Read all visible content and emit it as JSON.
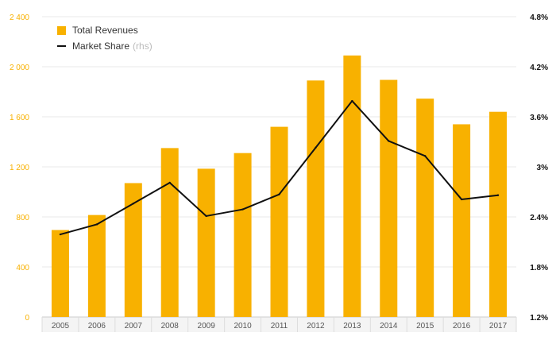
{
  "colors": {
    "bar": "#F8B100",
    "line": "#111111",
    "left_axis_text": "#F8B100",
    "grid": "#e9e9e9"
  },
  "legend": {
    "bar_label": "Total Revenues",
    "line_label": "Market Share",
    "line_note": "(rhs)"
  },
  "chart_data": {
    "type": "bar",
    "categories": [
      "2005",
      "2006",
      "2007",
      "2008",
      "2009",
      "2010",
      "2011",
      "2012",
      "2013",
      "2014",
      "2015",
      "2016",
      "2017"
    ],
    "series": [
      {
        "name": "Total Revenues",
        "type": "bar",
        "axis": "left",
        "values": [
          695,
          815,
          1070,
          1350,
          1185,
          1310,
          1520,
          1890,
          2090,
          1895,
          1745,
          1540,
          1640
        ]
      },
      {
        "name": "Market Share (rhs)",
        "type": "line",
        "axis": "right",
        "values": [
          2.19,
          2.31,
          2.56,
          2.81,
          2.41,
          2.49,
          2.67,
          3.23,
          3.79,
          3.31,
          3.13,
          2.61,
          2.66
        ]
      }
    ],
    "left_axis": {
      "ylim": [
        0,
        2400
      ],
      "ticks": [
        0,
        400,
        800,
        1200,
        1600,
        2000,
        2400
      ],
      "tick_labels": [
        "0",
        "400",
        "800",
        "1 200",
        "1 600",
        "2 000",
        "2 400"
      ]
    },
    "right_axis": {
      "ylim": [
        1.2,
        4.8
      ],
      "ticks": [
        1.2,
        1.8,
        2.4,
        3.0,
        3.6,
        4.2,
        4.8
      ],
      "tick_labels": [
        "1.2%",
        "1.8%",
        "2.4%",
        "3%",
        "3.6%",
        "4.2%",
        "4.8%"
      ]
    },
    "grid": true,
    "legend_position": "top-left"
  }
}
